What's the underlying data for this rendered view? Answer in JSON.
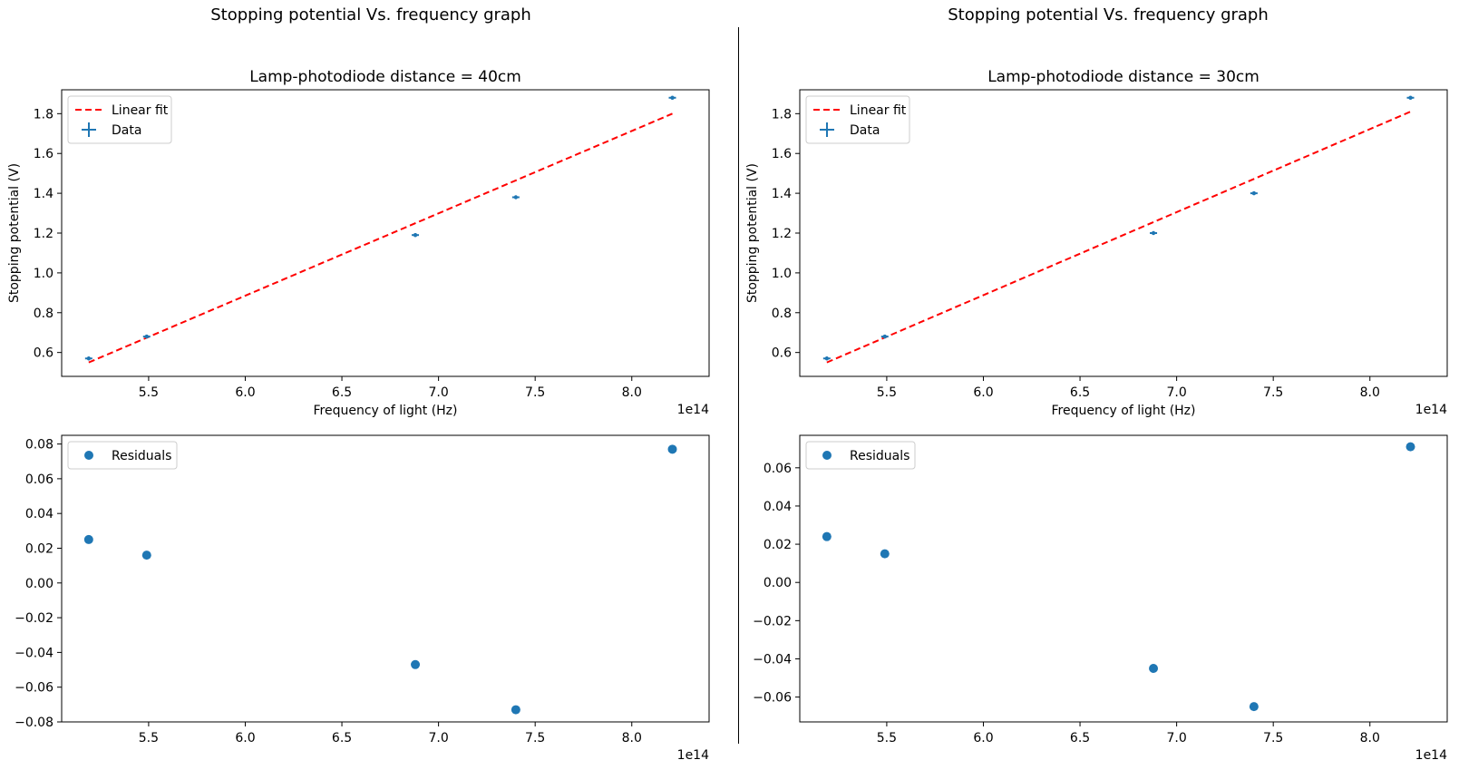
{
  "panels": [
    {
      "suptitle": "Stopping potential Vs. frequency graph",
      "chart_data": [
        {
          "type": "scatter",
          "title": "Lamp-photodiode distance = 40cm",
          "xlabel": "Frequency of light (Hz)",
          "ylabel": "Stopping potential (V)",
          "x_offset_text": "1e14",
          "xlim": [
            5.05,
            8.4
          ],
          "ylim": [
            0.48,
            1.92
          ],
          "xticks": [
            5.5,
            6.0,
            6.5,
            7.0,
            7.5,
            8.0
          ],
          "xtick_labels": [
            "5.5",
            "6.0",
            "6.5",
            "7.0",
            "7.5",
            "8.0"
          ],
          "yticks": [
            0.6,
            0.8,
            1.0,
            1.2,
            1.4,
            1.6,
            1.8
          ],
          "ytick_labels": [
            "0.6",
            "0.8",
            "1.0",
            "1.2",
            "1.4",
            "1.6",
            "1.8"
          ],
          "legend": {
            "placement": "upper-left",
            "entries": [
              "Linear fit",
              "Data"
            ]
          },
          "series": [
            {
              "name": "Linear fit",
              "kind": "dashed-line",
              "color": "#ff0000",
              "x": [
                5.19,
                8.21
              ],
              "y": [
                0.55,
                1.8
              ]
            },
            {
              "name": "Data",
              "kind": "errorbar-points",
              "color": "#1f77b4",
              "x": [
                5.19,
                5.49,
                6.88,
                7.4,
                8.21
              ],
              "y": [
                0.57,
                0.68,
                1.19,
                1.38,
                1.88
              ]
            }
          ]
        },
        {
          "type": "scatter",
          "title": "",
          "xlabel": "",
          "ylabel": "",
          "x_offset_text": "1e14",
          "xlim": [
            5.05,
            8.4
          ],
          "ylim": [
            -0.08,
            0.085
          ],
          "xticks": [
            5.5,
            6.0,
            6.5,
            7.0,
            7.5,
            8.0
          ],
          "xtick_labels": [
            "5.5",
            "6.0",
            "6.5",
            "7.0",
            "7.5",
            "8.0"
          ],
          "yticks": [
            -0.08,
            -0.06,
            -0.04,
            -0.02,
            0.0,
            0.02,
            0.04,
            0.06,
            0.08
          ],
          "ytick_labels": [
            "−0.08",
            "−0.06",
            "−0.04",
            "−0.02",
            "0.00",
            "0.02",
            "0.04",
            "0.06",
            "0.08"
          ],
          "legend": {
            "placement": "upper-left",
            "entries": [
              "Residuals"
            ]
          },
          "series": [
            {
              "name": "Residuals",
              "kind": "points",
              "color": "#1f77b4",
              "x": [
                5.19,
                5.49,
                6.88,
                7.4,
                8.21
              ],
              "y": [
                0.025,
                0.016,
                -0.047,
                -0.073,
                0.077
              ]
            }
          ]
        }
      ]
    },
    {
      "suptitle": "Stopping potential Vs. frequency graph",
      "chart_data": [
        {
          "type": "scatter",
          "title": "Lamp-photodiode distance = 30cm",
          "xlabel": "Frequency of light (Hz)",
          "ylabel": "Stopping potential (V)",
          "x_offset_text": "1e14",
          "xlim": [
            5.05,
            8.4
          ],
          "ylim": [
            0.48,
            1.92
          ],
          "xticks": [
            5.5,
            6.0,
            6.5,
            7.0,
            7.5,
            8.0
          ],
          "xtick_labels": [
            "5.5",
            "6.0",
            "6.5",
            "7.0",
            "7.5",
            "8.0"
          ],
          "yticks": [
            0.6,
            0.8,
            1.0,
            1.2,
            1.4,
            1.6,
            1.8
          ],
          "ytick_labels": [
            "0.6",
            "0.8",
            "1.0",
            "1.2",
            "1.4",
            "1.6",
            "1.8"
          ],
          "legend": {
            "placement": "upper-left",
            "entries": [
              "Linear fit",
              "Data"
            ]
          },
          "series": [
            {
              "name": "Linear fit",
              "kind": "dashed-line",
              "color": "#ff0000",
              "x": [
                5.19,
                8.21
              ],
              "y": [
                0.55,
                1.81
              ]
            },
            {
              "name": "Data",
              "kind": "errorbar-points",
              "color": "#1f77b4",
              "x": [
                5.19,
                5.49,
                6.88,
                7.4,
                8.21
              ],
              "y": [
                0.57,
                0.68,
                1.2,
                1.4,
                1.88
              ]
            }
          ]
        },
        {
          "type": "scatter",
          "title": "",
          "xlabel": "",
          "ylabel": "",
          "x_offset_text": "1e14",
          "xlim": [
            5.05,
            8.4
          ],
          "ylim": [
            -0.073,
            0.077
          ],
          "xticks": [
            5.5,
            6.0,
            6.5,
            7.0,
            7.5,
            8.0
          ],
          "xtick_labels": [
            "5.5",
            "6.0",
            "6.5",
            "7.0",
            "7.5",
            "8.0"
          ],
          "yticks": [
            -0.06,
            -0.04,
            -0.02,
            0.0,
            0.02,
            0.04,
            0.06
          ],
          "ytick_labels": [
            "−0.06",
            "−0.04",
            "−0.02",
            "0.00",
            "0.02",
            "0.04",
            "0.06"
          ],
          "legend": {
            "placement": "upper-left",
            "entries": [
              "Residuals"
            ]
          },
          "series": [
            {
              "name": "Residuals",
              "kind": "points",
              "color": "#1f77b4",
              "x": [
                5.19,
                5.49,
                6.88,
                7.4,
                8.21
              ],
              "y": [
                0.024,
                0.015,
                -0.045,
                -0.065,
                0.071
              ]
            }
          ]
        }
      ]
    }
  ]
}
